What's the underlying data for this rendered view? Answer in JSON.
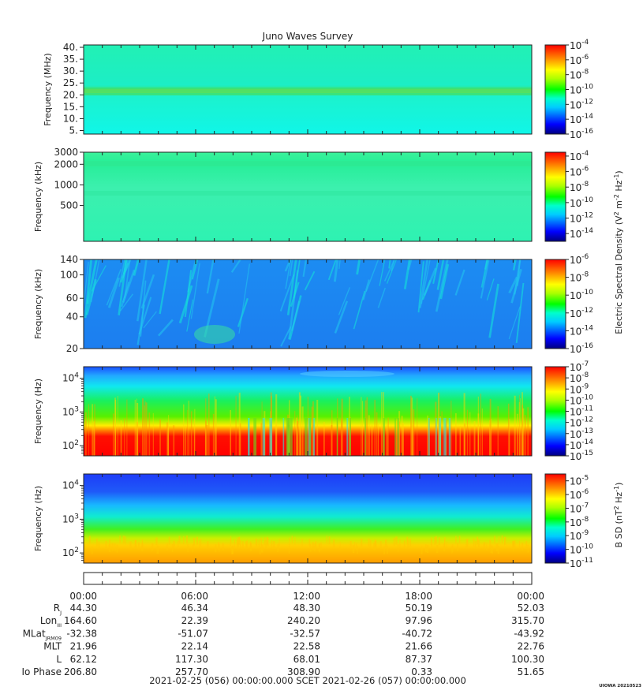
{
  "title": "Juno Waves Survey",
  "credit": "UIOWA 20210523",
  "chart_data": [
    {
      "type": "heatmap",
      "ylabel": "Frequency (MHz)",
      "yscale": "linear",
      "ylim": [
        3.5,
        41
      ],
      "yticks": [
        "40.",
        "35.",
        "30.",
        "25.",
        "20.",
        "15.",
        "10.",
        "5."
      ],
      "ytick_values": [
        40,
        35,
        30,
        25,
        20,
        15,
        10,
        5
      ],
      "colorbar": {
        "range_exp": [
          -16,
          -4
        ],
        "labels": [
          "-4",
          "-6",
          "-8",
          "-10",
          "-12",
          "-14",
          "-16"
        ],
        "label_values": [
          -4,
          -6,
          -8,
          -10,
          -12,
          -14,
          -16
        ]
      }
    },
    {
      "type": "heatmap",
      "ylabel": "Frequency (kHz)",
      "yscale": "log",
      "ylim": [
        150,
        3000
      ],
      "yticks": [
        "3000",
        "2000",
        "1000",
        "500"
      ],
      "ytick_values": [
        3000,
        2000,
        1000,
        500
      ],
      "colorbar": {
        "range_exp": [
          -15,
          -3.5
        ],
        "labels": [
          "-4",
          "-6",
          "-8",
          "-10",
          "-12",
          "-14"
        ],
        "label_values": [
          -4,
          -6,
          -8,
          -10,
          -12,
          -14
        ]
      }
    },
    {
      "type": "heatmap",
      "ylabel": "Frequency (kHz)",
      "yscale": "log",
      "ylim": [
        20,
        140
      ],
      "yticks": [
        "140",
        "100",
        "60",
        "40",
        "20"
      ],
      "ytick_values": [
        140,
        100,
        60,
        40,
        20
      ],
      "colorbar": {
        "range_exp": [
          -16,
          -6
        ],
        "labels": [
          "-6",
          "-8",
          "-10",
          "-12",
          "-14",
          "-16"
        ],
        "label_values": [
          -6,
          -8,
          -10,
          -12,
          -14,
          -16
        ]
      }
    },
    {
      "type": "heatmap",
      "ylabel": "Frequency (Hz)",
      "yscale": "log",
      "ylim": [
        50,
        22000
      ],
      "yticks": [
        "4",
        "3",
        "2"
      ],
      "ytick_values": [
        10000,
        1000,
        100
      ],
      "colorbar": {
        "range_exp": [
          -15,
          -7
        ],
        "labels": [
          "-7",
          "-8",
          "-9",
          "-10",
          "-11",
          "-12",
          "-13",
          "-14",
          "-15"
        ],
        "label_values": [
          -7,
          -8,
          -9,
          -10,
          -11,
          -12,
          -13,
          -14,
          -15
        ]
      }
    },
    {
      "type": "heatmap",
      "ylabel": "Frequency (Hz)",
      "yscale": "log",
      "ylim": [
        50,
        22000
      ],
      "yticks": [
        "4",
        "3",
        "2"
      ],
      "ytick_values": [
        10000,
        1000,
        100
      ],
      "colorbar": {
        "range_exp": [
          -11,
          -4.5
        ],
        "labels": [
          "-5",
          "-6",
          "-7",
          "-8",
          "-9",
          "-10",
          "-11"
        ],
        "label_values": [
          -5,
          -6,
          -7,
          -8,
          -9,
          -10,
          -11
        ]
      }
    }
  ],
  "colorbar_titles": {
    "electric": "Electric Spectral Density (V",
    "electric_rest": "m",
    "electric_tail": "Hz",
    "magnetic": "B SD (nT",
    "magnetic_tail": "Hz",
    "exp2": "2",
    "expm1": "-1",
    "expm2": "-2",
    "base10": "10"
  },
  "time_axis": {
    "ticks": [
      "00:00",
      "06:00",
      "12:00",
      "18:00",
      "00:00"
    ],
    "rows": [
      {
        "label": "R",
        "sub": "J",
        "values": [
          "44.30",
          "46.34",
          "48.30",
          "50.19",
          "52.03"
        ]
      },
      {
        "label": "Lon",
        "sub": "III",
        "values": [
          "164.60",
          "22.39",
          "240.20",
          "97.96",
          "315.70"
        ]
      },
      {
        "label": "MLat",
        "sub": "JRM09",
        "values": [
          "-32.38",
          "-51.07",
          "-32.57",
          "-40.72",
          "-43.92"
        ]
      },
      {
        "label": "MLT",
        "sub": "",
        "values": [
          "21.96",
          "22.14",
          "22.58",
          "21.66",
          "22.76"
        ]
      },
      {
        "label": "L",
        "sub": "",
        "values": [
          "62.12",
          "117.30",
          "68.01",
          "87.37",
          "100.30"
        ]
      },
      {
        "label": "Io Phase",
        "sub": "",
        "values": [
          "206.80",
          "257.70",
          "308.90",
          "0.33",
          "51.65"
        ]
      }
    ],
    "start": "2021-02-25 (056) 00:00:00.000",
    "frame": "SCET",
    "end": "2021-02-26 (057) 00:00:00.000"
  }
}
